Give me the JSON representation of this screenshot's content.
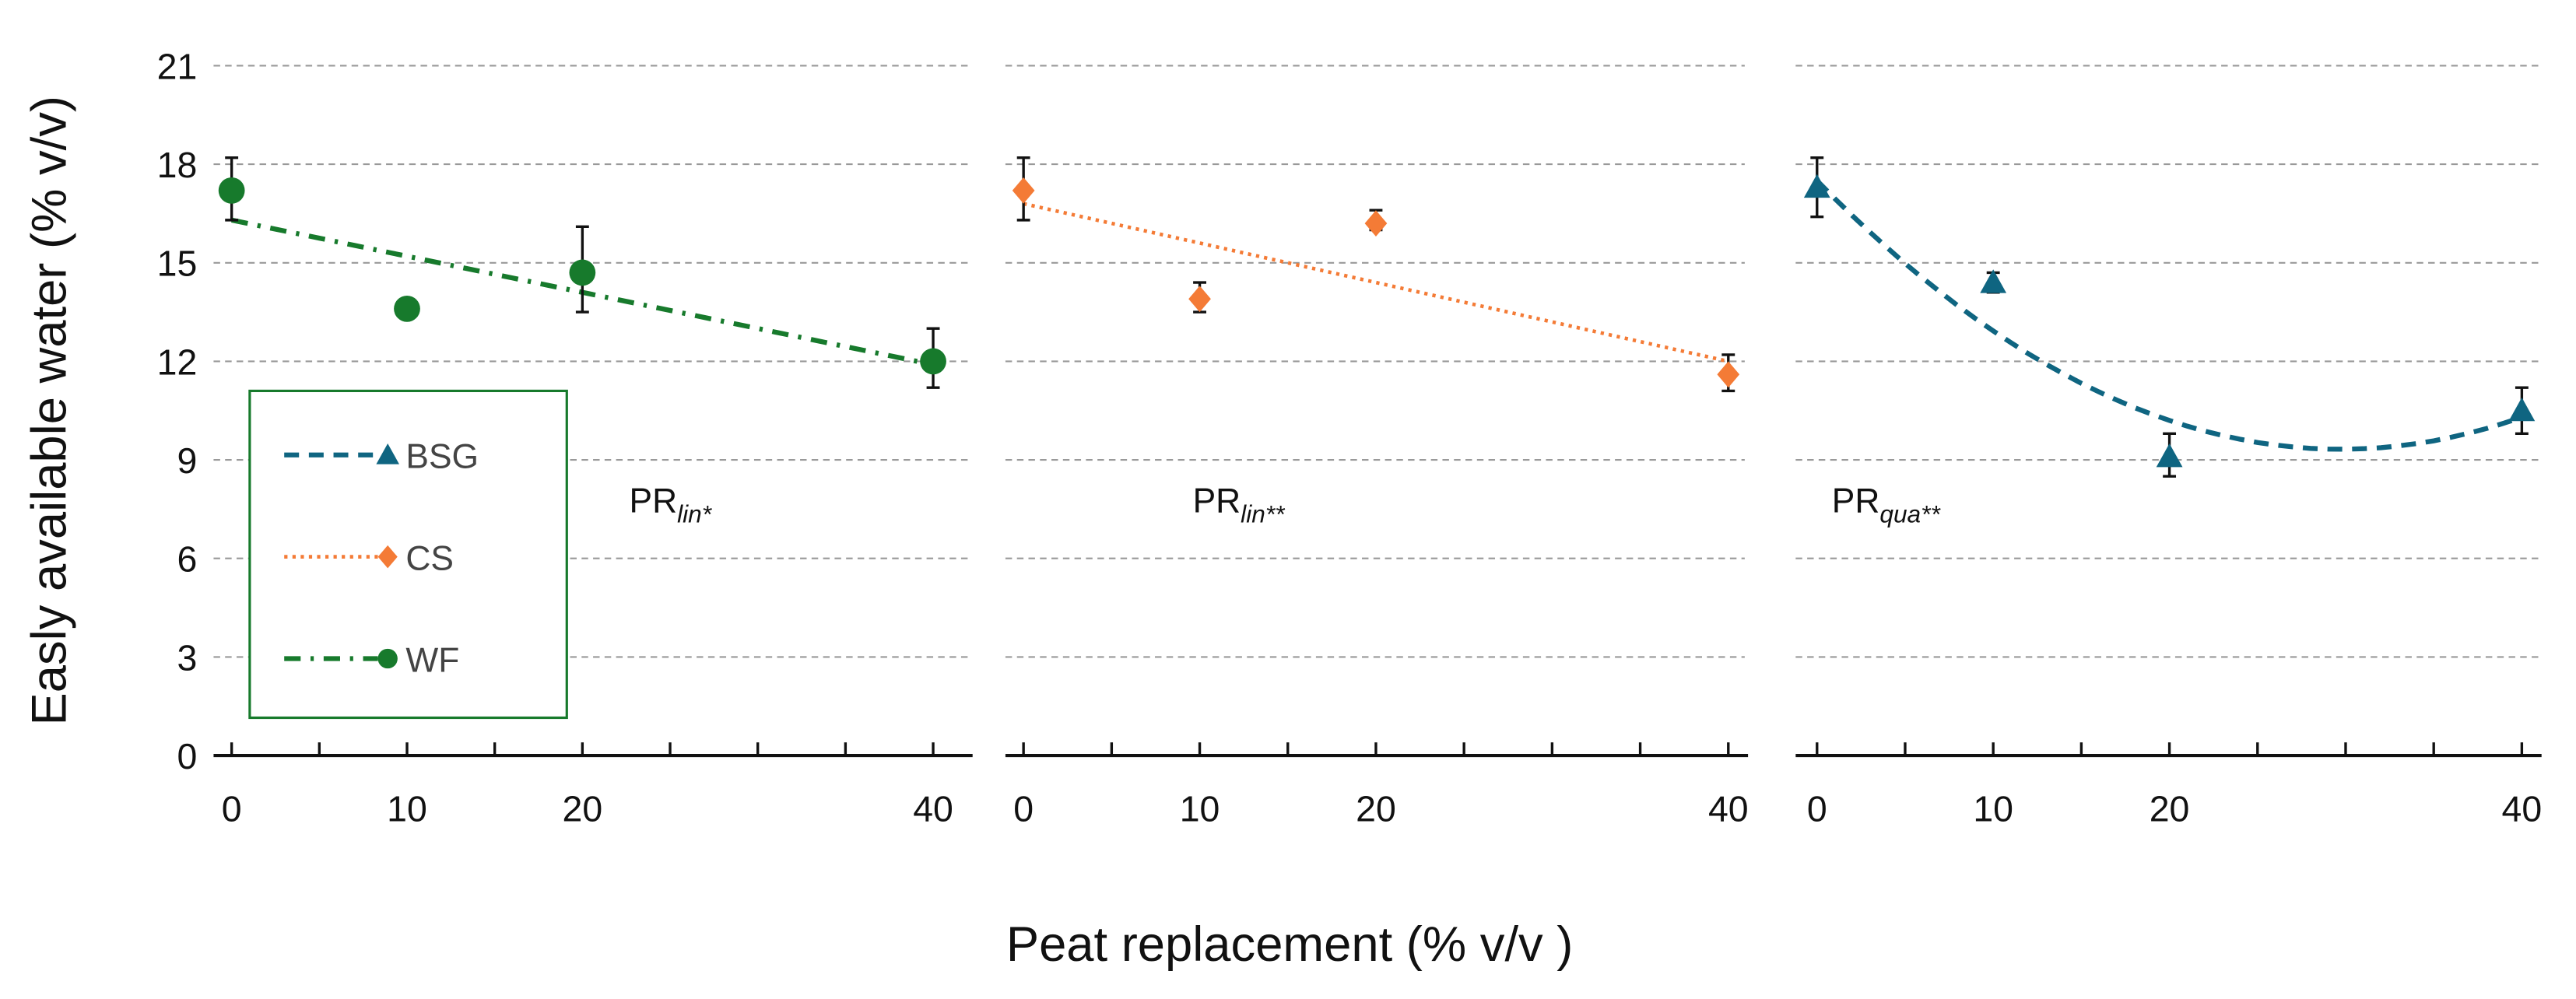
{
  "chart_data": {
    "type": "scatter",
    "ylabel": "Easly available water (% v/v)",
    "xlabel": "Peat replacement (% v/v )",
    "ylim": [
      0,
      21
    ],
    "yticks": [
      0,
      3,
      6,
      9,
      12,
      15,
      18,
      21
    ],
    "xticks": [
      0,
      10,
      20,
      40
    ],
    "xlim": [
      0,
      40
    ],
    "grid": "horizontal dashed",
    "legend": {
      "placement": "inside-left of first panel",
      "entries": [
        {
          "label": "BSG",
          "marker": "triangle",
          "line": "dashed",
          "color": "#0f6581"
        },
        {
          "label": "CS",
          "marker": "diamond",
          "line": "dotted",
          "color": "#f47b36"
        },
        {
          "label": "WF",
          "marker": "circle",
          "line": "dash-dot",
          "color": "#177a2c"
        }
      ]
    },
    "panels": [
      {
        "name": "WF",
        "color": "#177a2c",
        "marker": "circle",
        "line": "dash-dot",
        "annotation": {
          "base": "PR",
          "sub": "lin*"
        },
        "x": [
          0,
          10,
          20,
          40
        ],
        "y": [
          17.2,
          13.6,
          14.7,
          12.0
        ],
        "err_low": [
          16.3,
          null,
          13.5,
          11.2
        ],
        "err_high": [
          18.2,
          null,
          16.1,
          13.0
        ],
        "fit": {
          "type": "linear",
          "coef": [
            16.3,
            -0.11
          ]
        }
      },
      {
        "name": "CS",
        "color": "#f47b36",
        "marker": "diamond",
        "line": "dotted",
        "annotation": {
          "base": "PR",
          "sub": "lin**"
        },
        "x": [
          0,
          10,
          20,
          40
        ],
        "y": [
          17.2,
          13.9,
          16.2,
          11.6
        ],
        "err_low": [
          16.3,
          13.5,
          16.0,
          11.1
        ],
        "err_high": [
          18.2,
          14.4,
          16.6,
          12.2
        ],
        "fit": {
          "type": "linear",
          "coef": [
            16.8,
            -0.12
          ]
        }
      },
      {
        "name": "BSG",
        "color": "#0f6581",
        "marker": "triangle",
        "line": "dashed",
        "annotation": {
          "base": "PR",
          "sub": "qua**"
        },
        "x": [
          0,
          10,
          20,
          40
        ],
        "y": [
          17.3,
          14.4,
          9.1,
          10.5
        ],
        "err_low": [
          16.4,
          14.1,
          8.5,
          9.8
        ],
        "err_high": [
          18.2,
          14.7,
          9.8,
          11.2
        ],
        "fit": {
          "type": "quadratic",
          "coef": [
            17.5,
            -0.55,
            0.00925
          ]
        }
      }
    ]
  }
}
